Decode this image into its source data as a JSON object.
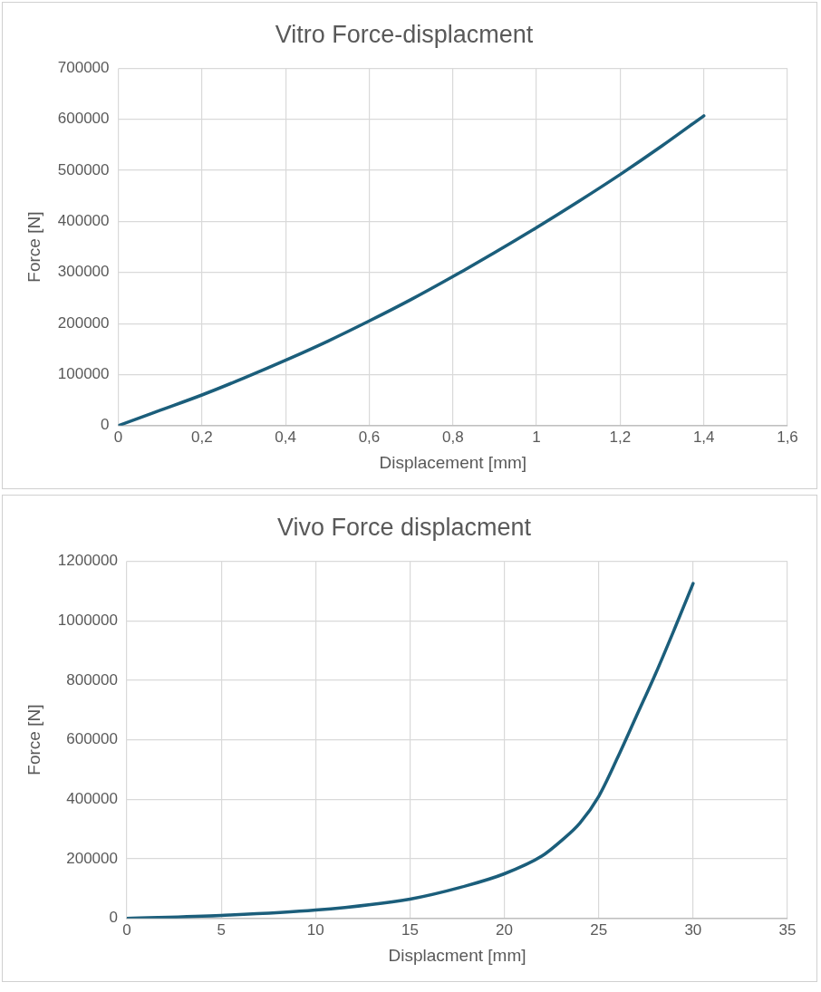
{
  "chart_data": [
    {
      "type": "line",
      "title": "Vitro Force-displacment",
      "xlabel": "Displacement [mm]",
      "ylabel": "Force [N]",
      "x": [
        0,
        0.1,
        0.2,
        0.3,
        0.4,
        0.5,
        0.6,
        0.7,
        0.8,
        0.9,
        1.0,
        1.1,
        1.2,
        1.3,
        1.4
      ],
      "series": [
        {
          "color": "#1b5e7b",
          "values": [
            0,
            30000,
            60000,
            93000,
            128000,
            165000,
            205000,
            247000,
            292000,
            339000,
            388000,
            439000,
            492000,
            548000,
            607000
          ]
        }
      ],
      "xlim": [
        0,
        1.6
      ],
      "xticks": [
        0,
        {
          "value": 0.2,
          "label": "0,2"
        },
        {
          "value": 0.4,
          "label": "0,4"
        },
        {
          "value": 0.6,
          "label": "0,6"
        },
        {
          "value": 0.8,
          "label": "0,8"
        },
        1,
        {
          "value": 1.2,
          "label": "1,2"
        },
        {
          "value": 1.4,
          "label": "1,4"
        },
        {
          "value": 1.6,
          "label": "1,6"
        }
      ],
      "ylim": [
        0,
        700000
      ],
      "yticks": [
        0,
        100000,
        200000,
        300000,
        400000,
        500000,
        600000,
        700000
      ],
      "grid": true,
      "legend": false,
      "marker": "none",
      "line_style": "solid"
    },
    {
      "type": "line",
      "title": "Vivo Force displacment",
      "xlabel": "Displacment [mm]",
      "ylabel": "Force [N]",
      "x": [
        0,
        5,
        10,
        15,
        18,
        20,
        22,
        23,
        24,
        25,
        26,
        27,
        28,
        29,
        30
      ],
      "series": [
        {
          "color": "#1b5e7b",
          "values": [
            0,
            10000,
            28000,
            65000,
            110000,
            150000,
            210000,
            260000,
            320000,
            410000,
            540000,
            680000,
            820000,
            970000,
            1125000
          ]
        }
      ],
      "xlim": [
        0,
        35
      ],
      "xticks": [
        0,
        5,
        10,
        15,
        20,
        25,
        30,
        35
      ],
      "ylim": [
        0,
        1200000
      ],
      "yticks": [
        0,
        200000,
        400000,
        600000,
        800000,
        1000000,
        1200000
      ],
      "grid": true,
      "legend": false,
      "marker": "none",
      "line_style": "solid"
    }
  ]
}
